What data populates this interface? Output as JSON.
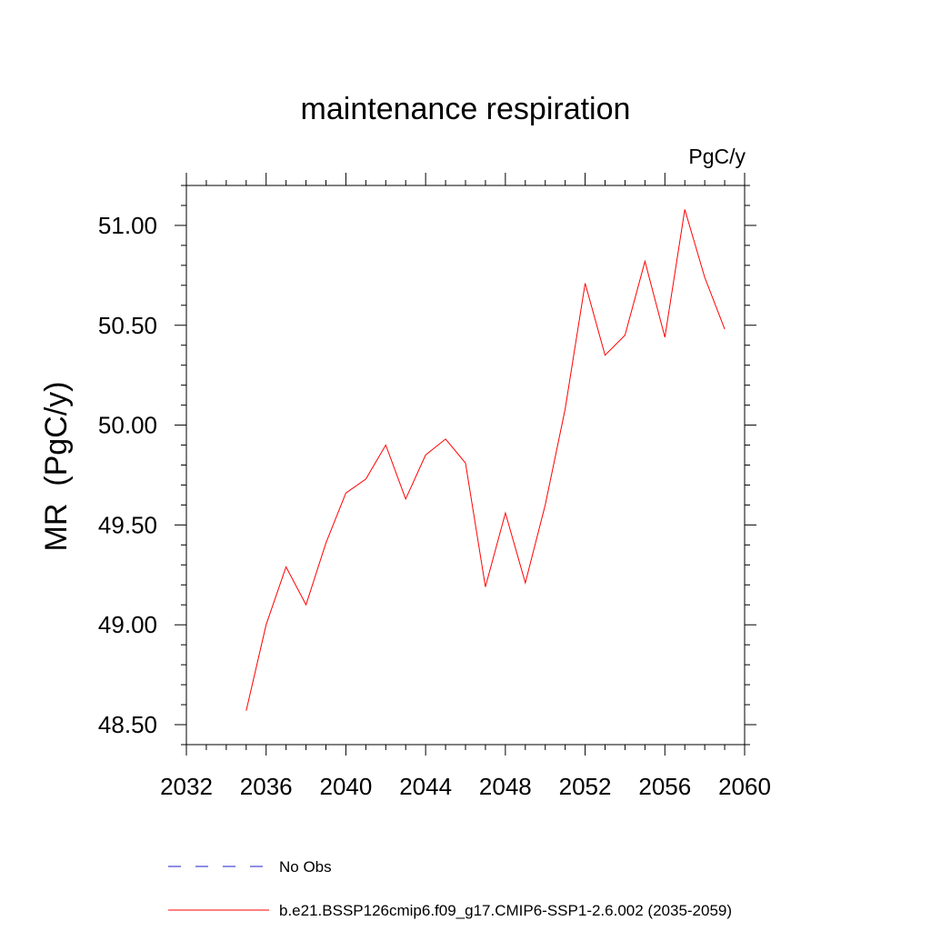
{
  "chart_data": {
    "type": "line",
    "title": "maintenance respiration",
    "units_label": "PgC/y",
    "ylabel": "MR  (PgC/y)",
    "xlabel": "",
    "xlim": [
      2032,
      2060
    ],
    "ylim": [
      48.4,
      51.2
    ],
    "x_ticks": [
      2032,
      2036,
      2040,
      2044,
      2048,
      2052,
      2056,
      2060
    ],
    "x_tick_labels": [
      "2032",
      "2036",
      "2040",
      "2044",
      "2048",
      "2052",
      "2056",
      "2060"
    ],
    "y_ticks": [
      48.5,
      49.0,
      49.5,
      50.0,
      50.5,
      51.0
    ],
    "y_tick_labels": [
      "48.50",
      "49.00",
      "49.50",
      "50.00",
      "50.50",
      "51.00"
    ],
    "grid": false,
    "legend_placement": "bottom",
    "series": [
      {
        "name": "b.e21.BSSP126cmip6.f09_g17.CMIP6-SSP1-2.6.002 (2035-2059)",
        "color": "#ff0000",
        "dash": "solid",
        "x": [
          2035,
          2036,
          2037,
          2038,
          2039,
          2040,
          2041,
          2042,
          2043,
          2044,
          2045,
          2046,
          2047,
          2048,
          2049,
          2050,
          2051,
          2052,
          2053,
          2054,
          2055,
          2056,
          2057,
          2058,
          2059
        ],
        "y": [
          48.57,
          49.0,
          49.29,
          49.1,
          49.41,
          49.66,
          49.73,
          49.9,
          49.63,
          49.85,
          49.93,
          49.81,
          49.19,
          49.56,
          49.21,
          49.6,
          50.08,
          50.71,
          50.35,
          50.45,
          50.82,
          50.44,
          51.08,
          50.74,
          50.48
        ]
      },
      {
        "name": "No Obs",
        "color": "#1e1ecc",
        "dash": "dashed",
        "x": [],
        "y": []
      }
    ]
  }
}
